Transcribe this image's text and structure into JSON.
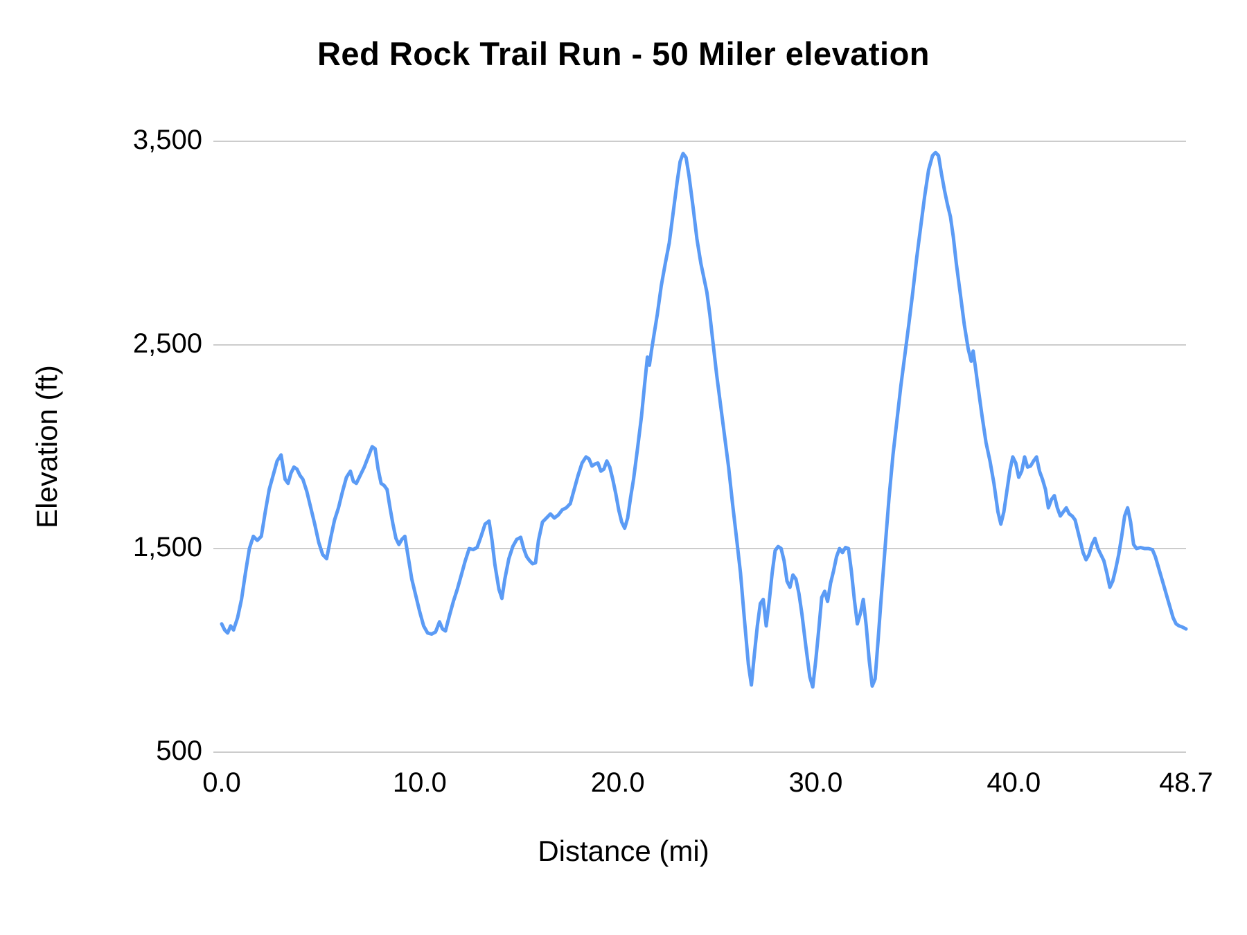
{
  "chart_data": {
    "type": "line",
    "title": "Red Rock Trail Run - 50 Miler elevation",
    "xlabel": "Distance (mi)",
    "ylabel": "Elevation (ft)",
    "xlim": [
      0,
      48.7
    ],
    "ylim": [
      500,
      3500
    ],
    "x_ticks": [
      0.0,
      10.0,
      20.0,
      30.0,
      40.0,
      48.7
    ],
    "x_tick_labels": [
      "0.0",
      "10.0",
      "20.0",
      "30.0",
      "40.0",
      "48.7"
    ],
    "y_ticks": [
      500,
      1500,
      2500,
      3500
    ],
    "y_tick_labels": [
      "500",
      "1,500",
      "2,500",
      "3,500"
    ],
    "grid": "horizontal",
    "legend": "none",
    "line_color": "#5b9bf5",
    "grid_color": "#cccccc",
    "series": [
      {
        "name": "elevation",
        "points": [
          [
            0.0,
            1130
          ],
          [
            0.15,
            1100
          ],
          [
            0.3,
            1085
          ],
          [
            0.45,
            1120
          ],
          [
            0.6,
            1100
          ],
          [
            0.8,
            1160
          ],
          [
            1.0,
            1250
          ],
          [
            1.2,
            1380
          ],
          [
            1.4,
            1500
          ],
          [
            1.6,
            1560
          ],
          [
            1.8,
            1540
          ],
          [
            2.0,
            1560
          ],
          [
            2.2,
            1680
          ],
          [
            2.4,
            1790
          ],
          [
            2.6,
            1860
          ],
          [
            2.8,
            1930
          ],
          [
            3.0,
            1960
          ],
          [
            3.1,
            1900
          ],
          [
            3.2,
            1840
          ],
          [
            3.35,
            1820
          ],
          [
            3.5,
            1870
          ],
          [
            3.65,
            1900
          ],
          [
            3.8,
            1890
          ],
          [
            3.95,
            1860
          ],
          [
            4.1,
            1840
          ],
          [
            4.3,
            1780
          ],
          [
            4.5,
            1700
          ],
          [
            4.7,
            1620
          ],
          [
            4.9,
            1530
          ],
          [
            5.1,
            1470
          ],
          [
            5.3,
            1450
          ],
          [
            5.5,
            1550
          ],
          [
            5.7,
            1640
          ],
          [
            5.9,
            1700
          ],
          [
            6.1,
            1780
          ],
          [
            6.3,
            1850
          ],
          [
            6.5,
            1880
          ],
          [
            6.65,
            1830
          ],
          [
            6.8,
            1820
          ],
          [
            7.0,
            1860
          ],
          [
            7.2,
            1900
          ],
          [
            7.4,
            1950
          ],
          [
            7.6,
            2000
          ],
          [
            7.75,
            1990
          ],
          [
            7.9,
            1890
          ],
          [
            8.05,
            1820
          ],
          [
            8.2,
            1810
          ],
          [
            8.35,
            1790
          ],
          [
            8.5,
            1700
          ],
          [
            8.65,
            1620
          ],
          [
            8.8,
            1550
          ],
          [
            8.95,
            1520
          ],
          [
            9.1,
            1545
          ],
          [
            9.25,
            1560
          ],
          [
            9.4,
            1470
          ],
          [
            9.6,
            1350
          ],
          [
            9.8,
            1270
          ],
          [
            10.0,
            1190
          ],
          [
            10.2,
            1120
          ],
          [
            10.4,
            1085
          ],
          [
            10.6,
            1080
          ],
          [
            10.8,
            1090
          ],
          [
            11.0,
            1140
          ],
          [
            11.15,
            1105
          ],
          [
            11.3,
            1095
          ],
          [
            11.5,
            1170
          ],
          [
            11.7,
            1240
          ],
          [
            11.9,
            1300
          ],
          [
            12.1,
            1370
          ],
          [
            12.3,
            1440
          ],
          [
            12.5,
            1500
          ],
          [
            12.7,
            1495
          ],
          [
            12.9,
            1505
          ],
          [
            13.1,
            1560
          ],
          [
            13.3,
            1620
          ],
          [
            13.5,
            1635
          ],
          [
            13.65,
            1540
          ],
          [
            13.8,
            1420
          ],
          [
            14.0,
            1300
          ],
          [
            14.15,
            1255
          ],
          [
            14.3,
            1350
          ],
          [
            14.5,
            1450
          ],
          [
            14.7,
            1510
          ],
          [
            14.9,
            1545
          ],
          [
            15.1,
            1555
          ],
          [
            15.25,
            1500
          ],
          [
            15.4,
            1460
          ],
          [
            15.55,
            1440
          ],
          [
            15.7,
            1425
          ],
          [
            15.85,
            1430
          ],
          [
            16.0,
            1540
          ],
          [
            16.2,
            1630
          ],
          [
            16.4,
            1650
          ],
          [
            16.6,
            1670
          ],
          [
            16.8,
            1650
          ],
          [
            17.0,
            1665
          ],
          [
            17.2,
            1690
          ],
          [
            17.4,
            1700
          ],
          [
            17.6,
            1720
          ],
          [
            17.8,
            1790
          ],
          [
            18.0,
            1860
          ],
          [
            18.2,
            1920
          ],
          [
            18.4,
            1950
          ],
          [
            18.55,
            1940
          ],
          [
            18.7,
            1905
          ],
          [
            18.85,
            1915
          ],
          [
            19.0,
            1920
          ],
          [
            19.15,
            1880
          ],
          [
            19.3,
            1890
          ],
          [
            19.45,
            1930
          ],
          [
            19.6,
            1900
          ],
          [
            19.75,
            1840
          ],
          [
            19.9,
            1770
          ],
          [
            20.05,
            1690
          ],
          [
            20.2,
            1630
          ],
          [
            20.35,
            1600
          ],
          [
            20.5,
            1650
          ],
          [
            20.65,
            1750
          ],
          [
            20.8,
            1840
          ],
          [
            21.0,
            1990
          ],
          [
            21.2,
            2150
          ],
          [
            21.35,
            2300
          ],
          [
            21.5,
            2440
          ],
          [
            21.6,
            2400
          ],
          [
            21.7,
            2470
          ],
          [
            21.85,
            2560
          ],
          [
            22.0,
            2650
          ],
          [
            22.2,
            2790
          ],
          [
            22.4,
            2900
          ],
          [
            22.6,
            3000
          ],
          [
            22.8,
            3150
          ],
          [
            23.0,
            3300
          ],
          [
            23.15,
            3400
          ],
          [
            23.3,
            3440
          ],
          [
            23.45,
            3420
          ],
          [
            23.6,
            3330
          ],
          [
            23.8,
            3180
          ],
          [
            24.0,
            3020
          ],
          [
            24.2,
            2900
          ],
          [
            24.35,
            2830
          ],
          [
            24.5,
            2760
          ],
          [
            24.65,
            2650
          ],
          [
            24.8,
            2520
          ],
          [
            25.0,
            2350
          ],
          [
            25.2,
            2200
          ],
          [
            25.4,
            2050
          ],
          [
            25.6,
            1900
          ],
          [
            25.8,
            1720
          ],
          [
            26.0,
            1550
          ],
          [
            26.2,
            1380
          ],
          [
            26.4,
            1150
          ],
          [
            26.6,
            930
          ],
          [
            26.75,
            830
          ],
          [
            26.9,
            980
          ],
          [
            27.05,
            1120
          ],
          [
            27.2,
            1230
          ],
          [
            27.35,
            1250
          ],
          [
            27.5,
            1120
          ],
          [
            27.65,
            1240
          ],
          [
            27.8,
            1380
          ],
          [
            27.95,
            1490
          ],
          [
            28.1,
            1510
          ],
          [
            28.25,
            1500
          ],
          [
            28.4,
            1440
          ],
          [
            28.55,
            1340
          ],
          [
            28.7,
            1310
          ],
          [
            28.85,
            1370
          ],
          [
            29.0,
            1350
          ],
          [
            29.15,
            1280
          ],
          [
            29.3,
            1180
          ],
          [
            29.5,
            1020
          ],
          [
            29.7,
            870
          ],
          [
            29.85,
            820
          ],
          [
            30.0,
            950
          ],
          [
            30.15,
            1100
          ],
          [
            30.3,
            1260
          ],
          [
            30.45,
            1290
          ],
          [
            30.6,
            1240
          ],
          [
            30.75,
            1330
          ],
          [
            30.9,
            1390
          ],
          [
            31.05,
            1460
          ],
          [
            31.2,
            1500
          ],
          [
            31.35,
            1480
          ],
          [
            31.5,
            1505
          ],
          [
            31.65,
            1500
          ],
          [
            31.8,
            1390
          ],
          [
            31.95,
            1250
          ],
          [
            32.1,
            1130
          ],
          [
            32.25,
            1180
          ],
          [
            32.4,
            1250
          ],
          [
            32.55,
            1120
          ],
          [
            32.7,
            950
          ],
          [
            32.85,
            825
          ],
          [
            33.0,
            860
          ],
          [
            33.15,
            1050
          ],
          [
            33.3,
            1250
          ],
          [
            33.5,
            1500
          ],
          [
            33.7,
            1750
          ],
          [
            33.9,
            1960
          ],
          [
            34.1,
            2130
          ],
          [
            34.3,
            2300
          ],
          [
            34.5,
            2450
          ],
          [
            34.7,
            2600
          ],
          [
            34.9,
            2760
          ],
          [
            35.1,
            2930
          ],
          [
            35.3,
            3080
          ],
          [
            35.5,
            3230
          ],
          [
            35.7,
            3360
          ],
          [
            35.9,
            3430
          ],
          [
            36.05,
            3445
          ],
          [
            36.2,
            3430
          ],
          [
            36.35,
            3340
          ],
          [
            36.5,
            3260
          ],
          [
            36.65,
            3190
          ],
          [
            36.8,
            3130
          ],
          [
            36.95,
            3030
          ],
          [
            37.1,
            2900
          ],
          [
            37.3,
            2750
          ],
          [
            37.5,
            2600
          ],
          [
            37.7,
            2480
          ],
          [
            37.85,
            2420
          ],
          [
            37.95,
            2470
          ],
          [
            38.05,
            2400
          ],
          [
            38.2,
            2290
          ],
          [
            38.4,
            2150
          ],
          [
            38.6,
            2020
          ],
          [
            38.8,
            1930
          ],
          [
            39.0,
            1820
          ],
          [
            39.2,
            1680
          ],
          [
            39.35,
            1620
          ],
          [
            39.5,
            1680
          ],
          [
            39.65,
            1780
          ],
          [
            39.8,
            1880
          ],
          [
            39.95,
            1950
          ],
          [
            40.1,
            1920
          ],
          [
            40.25,
            1850
          ],
          [
            40.4,
            1880
          ],
          [
            40.55,
            1950
          ],
          [
            40.7,
            1900
          ],
          [
            40.85,
            1905
          ],
          [
            41.0,
            1930
          ],
          [
            41.15,
            1950
          ],
          [
            41.3,
            1880
          ],
          [
            41.45,
            1840
          ],
          [
            41.6,
            1790
          ],
          [
            41.75,
            1700
          ],
          [
            41.9,
            1740
          ],
          [
            42.05,
            1760
          ],
          [
            42.2,
            1700
          ],
          [
            42.35,
            1660
          ],
          [
            42.5,
            1680
          ],
          [
            42.65,
            1700
          ],
          [
            42.8,
            1670
          ],
          [
            42.95,
            1660
          ],
          [
            43.1,
            1640
          ],
          [
            43.3,
            1560
          ],
          [
            43.5,
            1480
          ],
          [
            43.65,
            1445
          ],
          [
            43.8,
            1470
          ],
          [
            43.95,
            1520
          ],
          [
            44.1,
            1550
          ],
          [
            44.25,
            1500
          ],
          [
            44.4,
            1470
          ],
          [
            44.55,
            1440
          ],
          [
            44.7,
            1380
          ],
          [
            44.85,
            1310
          ],
          [
            45.0,
            1340
          ],
          [
            45.15,
            1400
          ],
          [
            45.3,
            1470
          ],
          [
            45.45,
            1560
          ],
          [
            45.6,
            1660
          ],
          [
            45.75,
            1700
          ],
          [
            45.9,
            1630
          ],
          [
            46.05,
            1520
          ],
          [
            46.2,
            1500
          ],
          [
            46.4,
            1505
          ],
          [
            46.6,
            1500
          ],
          [
            46.8,
            1500
          ],
          [
            47.0,
            1495
          ],
          [
            47.15,
            1460
          ],
          [
            47.3,
            1410
          ],
          [
            47.45,
            1360
          ],
          [
            47.6,
            1310
          ],
          [
            47.75,
            1260
          ],
          [
            47.9,
            1210
          ],
          [
            48.05,
            1160
          ],
          [
            48.2,
            1130
          ],
          [
            48.35,
            1120
          ],
          [
            48.5,
            1115
          ],
          [
            48.7,
            1105
          ]
        ]
      }
    ]
  }
}
